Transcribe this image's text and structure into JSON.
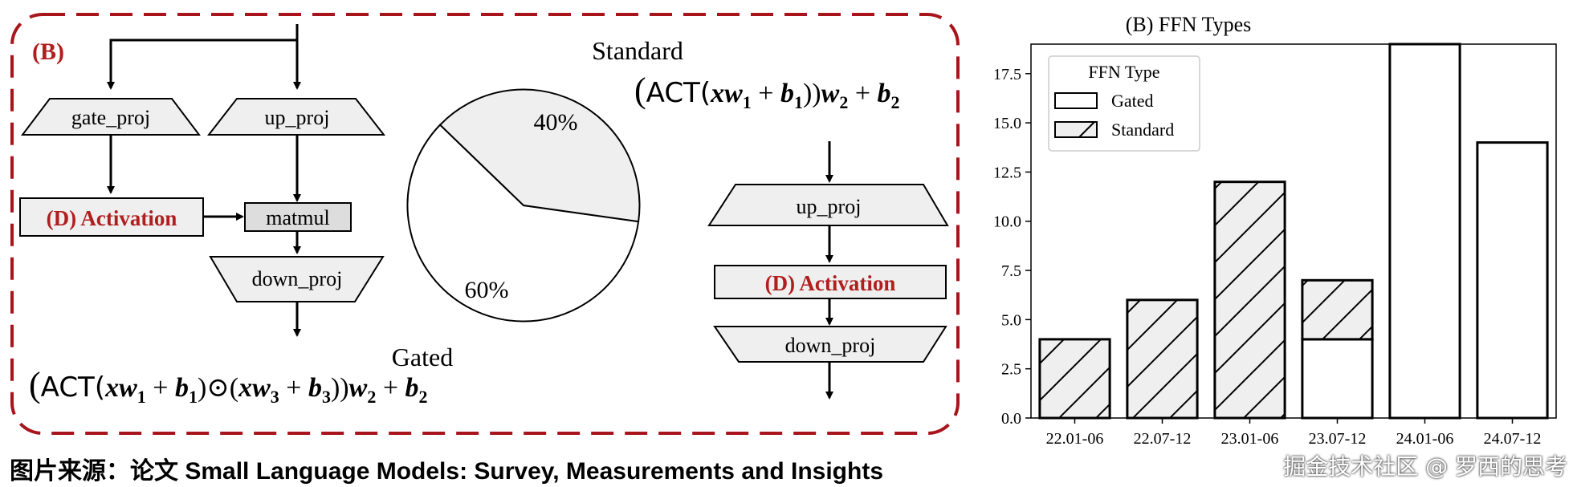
{
  "diagram": {
    "panel_label": "(B)",
    "boxes": {
      "gate_proj": "gate_proj",
      "up_proj": "up_proj",
      "activation": "(D) Activation",
      "matmul": "matmul",
      "down_proj": "down_proj",
      "right_up_proj": "up_proj",
      "right_activation": "(D) Activation",
      "right_down_proj": "down_proj"
    },
    "pie": {
      "standard_label": "Standard",
      "gated_label": "Gated",
      "standard_pct_text": "40%",
      "gated_pct_text": "60%",
      "standard_fraction": 0.4,
      "gated_fraction": 0.6,
      "standard_fill": "#efefef",
      "gated_fill": "#ffffff"
    },
    "formula_standard": {
      "lparen": "(",
      "act": "ACT(",
      "x": "x",
      "w": "w",
      "sub1": "1",
      "plus1": " + ",
      "b": "b",
      "sub1b": "1",
      "close": "))",
      "w2": "w",
      "sub2": "2",
      "plus2": " + ",
      "b2": "b",
      "sub2b": "2"
    },
    "formula_gated": {
      "lparen": "(",
      "act": "ACT(",
      "x": "x",
      "w": "w",
      "sub1": "1",
      "plus1": " + ",
      "b": "b",
      "sub1b": "1",
      "mid": ")⊙(",
      "x3": "x",
      "w3": "w",
      "sub3": "3",
      "plus3": " + ",
      "b3": "b",
      "sub3b": "3",
      "close": "))",
      "w2": "w",
      "sub2": "2",
      "plus2": " + ",
      "b2": "b",
      "sub2b": "2"
    },
    "colors": {
      "accent_red": "#b01e1e",
      "box_fill": "#efefef",
      "matmul_fill": "#dddddd"
    }
  },
  "chart_data": {
    "type": "bar",
    "title": "(B) FFN Types",
    "stacked": true,
    "categories": [
      "22.01-06",
      "22.07-12",
      "23.01-06",
      "23.07-12",
      "24.01-06",
      "24.07-12"
    ],
    "series": [
      {
        "name": "Gated",
        "values": [
          0,
          0,
          0,
          4,
          19,
          14
        ],
        "fill": "#ffffff",
        "hatch": false
      },
      {
        "name": "Standard",
        "values": [
          4,
          6,
          12,
          3,
          0,
          0
        ],
        "fill": "#efefef",
        "hatch": true
      }
    ],
    "ylim": [
      0,
      19
    ],
    "yticks": [
      "0.0",
      "2.5",
      "5.0",
      "7.5",
      "10.0",
      "12.5",
      "15.0",
      "17.5"
    ],
    "legend": {
      "title": "FFN Type",
      "placement": "top-left"
    },
    "grid": false,
    "xlabel": "",
    "ylabel": ""
  },
  "caption": "图片来源：论文 Small Language Models: Survey, Measurements and Insights",
  "watermark": "掘金技术社区 @ 罗西的思考"
}
